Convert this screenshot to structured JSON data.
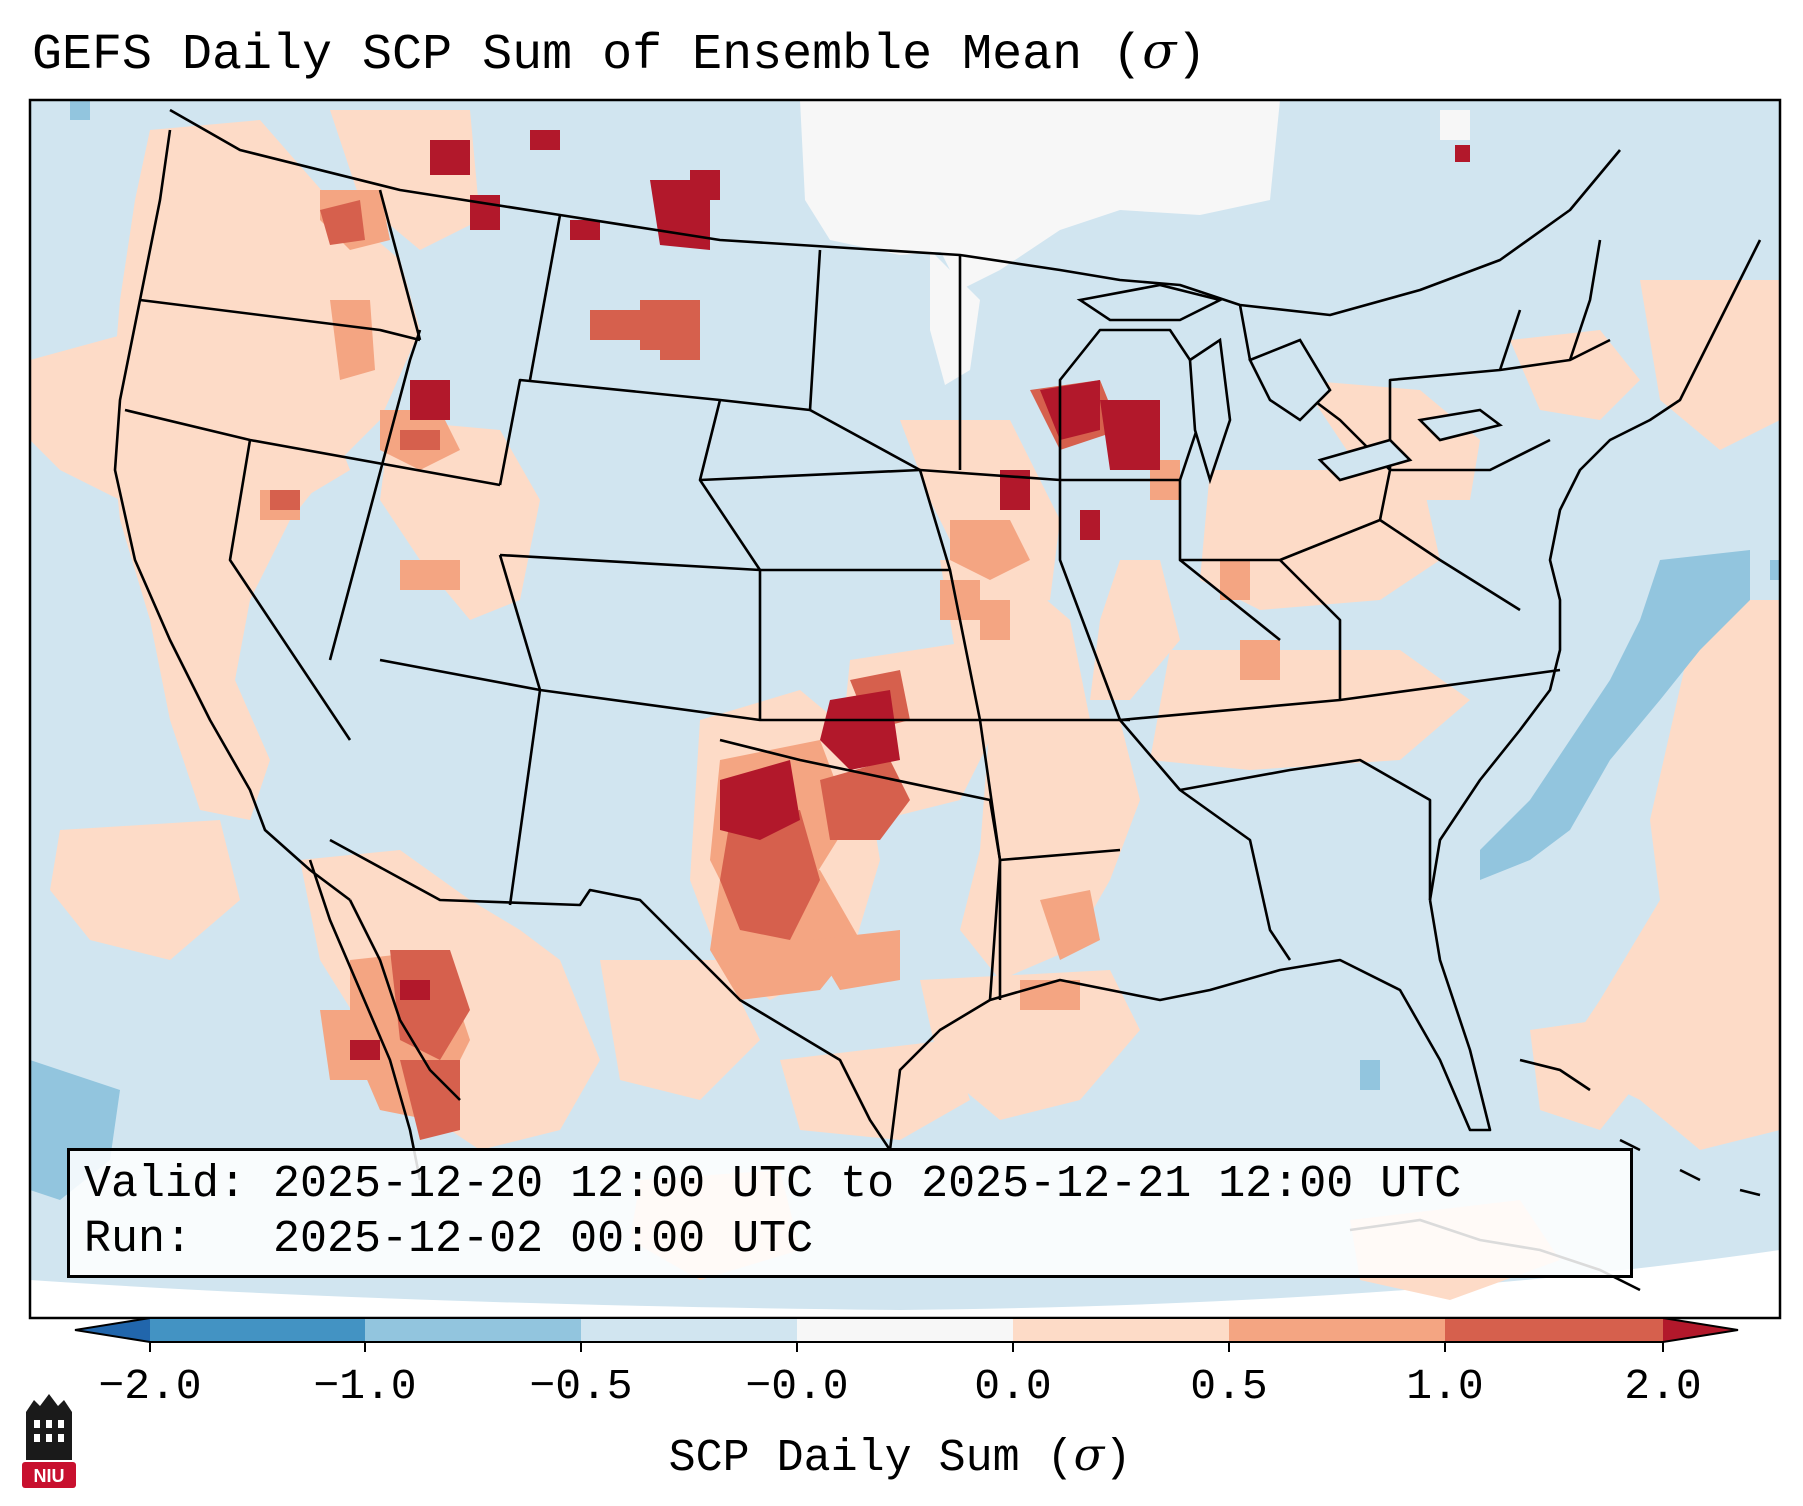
{
  "title": {
    "text": "GEFS Daily SCP Sum of Ensemble Mean (",
    "symbol": "σ",
    "close": ")"
  },
  "infobox": {
    "valid_label": "Valid:",
    "valid_value": "2025-12-20 12:00 UTC to 2025-12-21 12:00 UTC",
    "run_label": "Run:",
    "run_value": "2025-12-02 00:00 UTC"
  },
  "colorbar": {
    "ticks": [
      "−2.0",
      "−1.0",
      "−0.5",
      "−0.0",
      "0.0",
      "0.5",
      "1.0",
      "2.0"
    ],
    "label_text": "SCP Daily Sum (",
    "label_symbol": "σ",
    "label_close": ")",
    "colors": {
      "under": "#2166ac",
      "neg_2_1": "#4393c3",
      "neg_1_05": "#92c5de",
      "neg_05_0": "#d1e5f0",
      "near_zero": "#f7f7f7",
      "pos_0_05": "#fddbc7",
      "pos_05_1": "#f4a582",
      "pos_1_2": "#d6604d",
      "over": "#b2182b"
    }
  },
  "logo": {
    "text": "NIU",
    "color": "#c8102e"
  },
  "map": {
    "background": "#d1e5f0",
    "region": "Continental United States",
    "field": "SCP"
  }
}
